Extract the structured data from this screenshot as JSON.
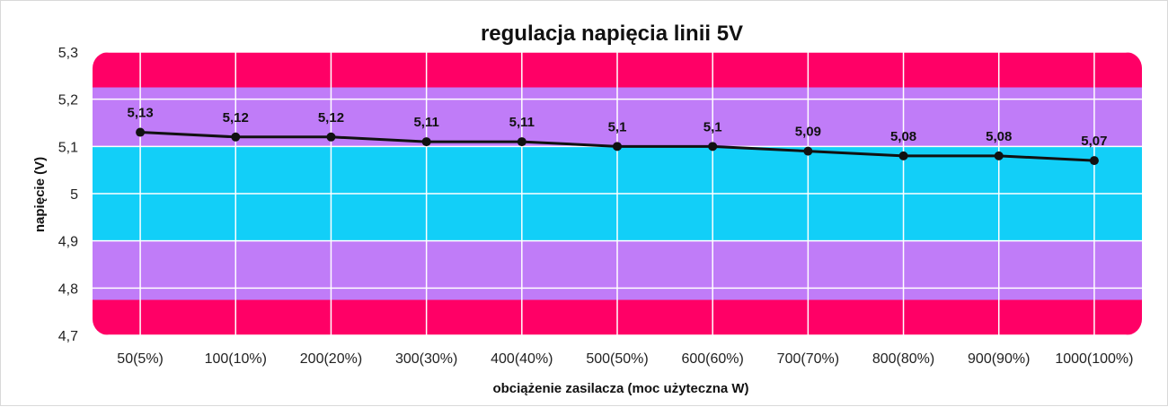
{
  "chart_data": {
    "type": "line",
    "title": "regulacja napięcia linii 5V",
    "xlabel": "obciążenie zasilacza (moc użyteczna W)",
    "ylabel": "napięcie (V)",
    "categories": [
      "50(5%)",
      "100(10%)",
      "200(20%)",
      "300(30%)",
      "400(40%)",
      "500(50%)",
      "600(60%)",
      "700(70%)",
      "800(80%)",
      "900(90%)",
      "1000(100%)"
    ],
    "series": [
      {
        "values": [
          5.13,
          5.12,
          5.12,
          5.11,
          5.11,
          5.1,
          5.1,
          5.09,
          5.08,
          5.08,
          5.07
        ]
      }
    ],
    "data_labels": [
      "5,13",
      "5,12",
      "5,12",
      "5,11",
      "5,11",
      "5,1",
      "5,1",
      "5,09",
      "5,08",
      "5,08",
      "5,07"
    ],
    "y_ticks": [
      4.7,
      4.8,
      4.9,
      5,
      5.1,
      5.2,
      5.3
    ],
    "y_tick_labels": [
      "4,7",
      "4,8",
      "4,9",
      "5",
      "5,1",
      "5,2",
      "5,3"
    ],
    "ylim": [
      4.7,
      5.3
    ],
    "grid": true,
    "bands": [
      {
        "from": 5.225,
        "to": 5.3,
        "color": "#ff0066"
      },
      {
        "from": 5.1,
        "to": 5.225,
        "color": "#c07cf8"
      },
      {
        "from": 4.9,
        "to": 5.1,
        "color": "#12cff8"
      },
      {
        "from": 4.775,
        "to": 4.9,
        "color": "#c07cf8"
      },
      {
        "from": 4.7,
        "to": 4.775,
        "color": "#ff0066"
      }
    ],
    "line_color": "#111111",
    "grid_color": "#ffffff"
  }
}
